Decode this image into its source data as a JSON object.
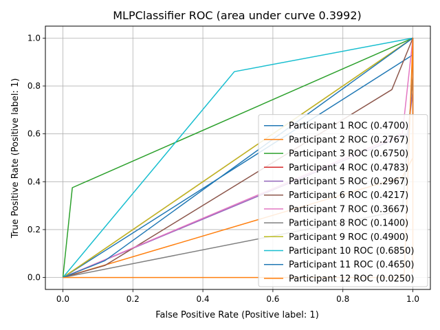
{
  "chart_data": {
    "type": "line",
    "title": "MLPClassifier ROC (area under curve 0.3992)",
    "xlabel": "False Positive Rate (Positive label: 1)",
    "ylabel": "True Positive Rate (Positive label: 1)",
    "xlim": [
      -0.05,
      1.05
    ],
    "ylim": [
      -0.05,
      1.05
    ],
    "x_ticks": [
      "0.0",
      "0.2",
      "0.4",
      "0.6",
      "0.8",
      "1.0"
    ],
    "y_ticks": [
      "0.0",
      "0.2",
      "0.4",
      "0.6",
      "0.8",
      "1.0"
    ],
    "grid": true,
    "legend_position": "lower-right",
    "series": [
      {
        "name": "Participant 1 ROC (0.4700)",
        "color": "#1f77b4",
        "x": [
          0,
          1,
          1
        ],
        "y": [
          0,
          0.93,
          1
        ]
      },
      {
        "name": "Participant 2 ROC (0.2767)",
        "color": "#ff7f0e",
        "x": [
          0,
          0.97,
          1,
          1
        ],
        "y": [
          0,
          0.42,
          0.5,
          1
        ]
      },
      {
        "name": "Participant 3 ROC (0.6750)",
        "color": "#2ca02c",
        "x": [
          0,
          0.027,
          1
        ],
        "y": [
          0,
          0.375,
          1
        ]
      },
      {
        "name": "Participant 4 ROC (0.4783)",
        "color": "#d62728",
        "x": [
          0,
          1
        ],
        "y": [
          0,
          1
        ]
      },
      {
        "name": "Participant 5 ROC (0.2967)",
        "color": "#9467bd",
        "x": [
          0,
          0.985,
          1,
          1
        ],
        "y": [
          0,
          0.6,
          0.78,
          1
        ]
      },
      {
        "name": "Participant 6 ROC (0.4217)",
        "color": "#8c564b",
        "x": [
          0,
          0.12,
          0.94,
          1,
          1
        ],
        "y": [
          0,
          0.05,
          0.785,
          1,
          0.7
        ]
      },
      {
        "name": "Participant 7 ROC (0.3667)",
        "color": "#e377c2",
        "x": [
          0,
          0.97,
          1,
          1
        ],
        "y": [
          0,
          0.6,
          1,
          0.6
        ]
      },
      {
        "name": "Participant 8 ROC (0.1400)",
        "color": "#7f7f7f",
        "x": [
          0,
          0.97,
          1,
          1
        ],
        "y": [
          0,
          0.28,
          0.85,
          1
        ]
      },
      {
        "name": "Participant 9 ROC (0.4900)",
        "color": "#bcbd22",
        "x": [
          0,
          1
        ],
        "y": [
          0,
          1
        ]
      },
      {
        "name": "Participant 10 ROC (0.6850)",
        "color": "#17becf",
        "x": [
          0,
          0.49,
          1
        ],
        "y": [
          0,
          0.86,
          1
        ]
      },
      {
        "name": "Participant 11 ROC (0.4650)",
        "color": "#1f77b4",
        "x": [
          0,
          0.12,
          1,
          1
        ],
        "y": [
          0,
          0.07,
          1,
          0.6
        ]
      },
      {
        "name": "Participant 12 ROC (0.0250)",
        "color": "#ff7f0e",
        "x": [
          0,
          0.975,
          1,
          1
        ],
        "y": [
          0,
          0,
          1,
          0.02
        ]
      }
    ]
  }
}
